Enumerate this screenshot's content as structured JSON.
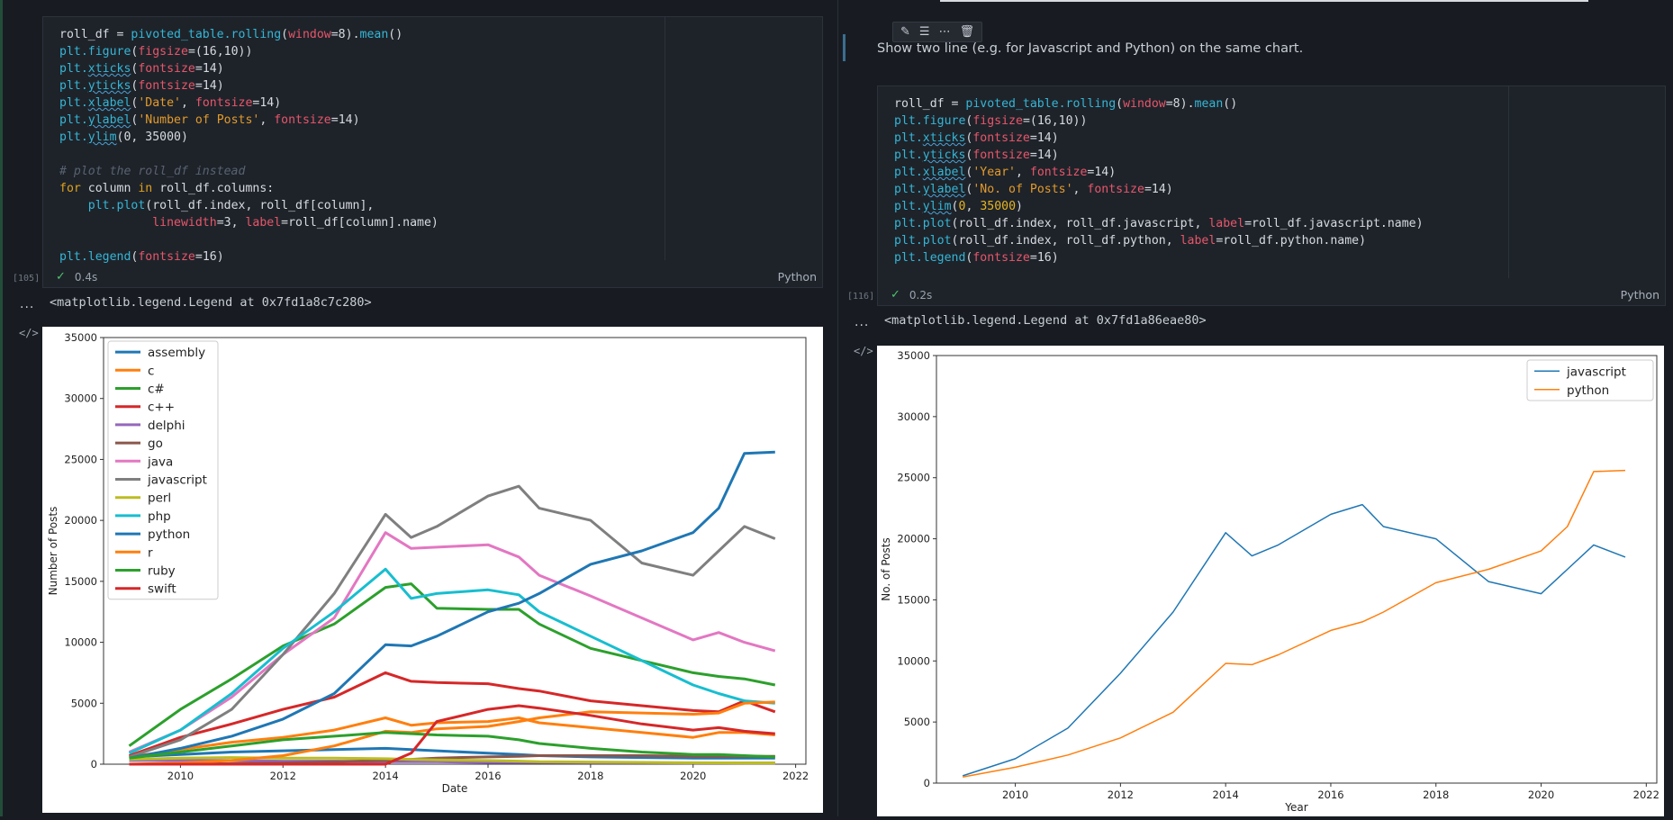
{
  "left": {
    "exec_count": "[105]",
    "code_lines": [
      [
        [
          "roll_df = ",
          ""
        ],
        [
          "pivoted_table.rolling",
          "fn"
        ],
        [
          "(",
          ""
        ],
        [
          "window",
          "arg"
        ],
        [
          "=8",
          ""
        ],
        [
          ").",
          ""
        ],
        [
          "mean",
          "fn"
        ],
        [
          "()",
          ""
        ]
      ],
      [
        [
          "plt.figure",
          "fn"
        ],
        [
          "(",
          ""
        ],
        [
          "figsize",
          "arg"
        ],
        [
          "=(16,10))",
          ""
        ]
      ],
      [
        [
          "plt.",
          "fn"
        ],
        [
          "xticks",
          "fn sq"
        ],
        [
          "(",
          ""
        ],
        [
          "fontsize",
          "arg"
        ],
        [
          "=14)",
          ""
        ]
      ],
      [
        [
          "plt.",
          "fn"
        ],
        [
          "yticks",
          "fn sq"
        ],
        [
          "(",
          ""
        ],
        [
          "fontsize",
          "arg"
        ],
        [
          "=14)",
          ""
        ]
      ],
      [
        [
          "plt.",
          "fn"
        ],
        [
          "xlabel",
          "fn sq"
        ],
        [
          "(",
          ""
        ],
        [
          "'Date'",
          "str"
        ],
        [
          ", ",
          ""
        ],
        [
          "fontsize",
          "arg"
        ],
        [
          "=14)",
          ""
        ]
      ],
      [
        [
          "plt.",
          "fn"
        ],
        [
          "ylabel",
          "fn sq"
        ],
        [
          "(",
          ""
        ],
        [
          "'Number of Posts'",
          "str"
        ],
        [
          ", ",
          ""
        ],
        [
          "fontsize",
          "arg"
        ],
        [
          "=14)",
          ""
        ]
      ],
      [
        [
          "plt.",
          "fn"
        ],
        [
          "ylim",
          "fn sq"
        ],
        [
          "(0, 35000)",
          ""
        ]
      ],
      [],
      [
        [
          "# plot the roll_df instead",
          "cm"
        ]
      ],
      [
        [
          "for",
          "kw"
        ],
        [
          " column ",
          ""
        ],
        [
          "in",
          "kw"
        ],
        [
          " roll_df.columns:",
          ""
        ]
      ],
      [
        [
          "    ",
          ""
        ],
        [
          "plt.plot",
          "fn"
        ],
        [
          "(roll_df.index, roll_df[column],",
          ""
        ]
      ],
      [
        [
          "             ",
          ""
        ],
        [
          "linewidth",
          "arg"
        ],
        [
          "=3, ",
          ""
        ],
        [
          "label",
          "arg"
        ],
        [
          "=roll_df[column].name)",
          ""
        ]
      ],
      [],
      [
        [
          "plt.legend",
          "fn"
        ],
        [
          "(",
          ""
        ],
        [
          "fontsize",
          "arg"
        ],
        [
          "=16)",
          ""
        ]
      ]
    ],
    "duration": "0.4s",
    "language": "Python",
    "output_text": "<matplotlib.legend.Legend at 0x7fd1a8c7c280>",
    "dots": "...",
    "code_icon": "</>"
  },
  "right": {
    "markdown": "Show two line (e.g. for Javascript and Python) on the same chart.",
    "toolbar_icons": [
      "pencil-icon",
      "list-icon",
      "more-icon",
      "trash-icon"
    ],
    "toolbar_glyphs": [
      "✎",
      "☰",
      "⋯",
      "🗑"
    ],
    "exec_count": "[116]",
    "code_lines": [
      [
        [
          "roll_df = ",
          ""
        ],
        [
          "pivoted_table.rolling",
          "fn"
        ],
        [
          "(",
          ""
        ],
        [
          "window",
          "arg"
        ],
        [
          "=8",
          ""
        ],
        [
          ").",
          ""
        ],
        [
          "mean",
          "fn"
        ],
        [
          "()",
          ""
        ]
      ],
      [
        [
          "plt.figure",
          "fn"
        ],
        [
          "(",
          ""
        ],
        [
          "figsize",
          "arg"
        ],
        [
          "=(16,10))",
          ""
        ]
      ],
      [
        [
          "plt.",
          "fn"
        ],
        [
          "xticks",
          "fn sq"
        ],
        [
          "(",
          ""
        ],
        [
          "fontsize",
          "arg"
        ],
        [
          "=14)",
          ""
        ]
      ],
      [
        [
          "plt.",
          "fn"
        ],
        [
          "yticks",
          "fn sq"
        ],
        [
          "(",
          ""
        ],
        [
          "fontsize",
          "arg"
        ],
        [
          "=14)",
          ""
        ]
      ],
      [
        [
          "plt.",
          "fn"
        ],
        [
          "xlabel",
          "fn sq"
        ],
        [
          "(",
          ""
        ],
        [
          "'Year'",
          "str"
        ],
        [
          ", ",
          ""
        ],
        [
          "fontsize",
          "arg"
        ],
        [
          "=14)",
          ""
        ]
      ],
      [
        [
          "plt.",
          "fn"
        ],
        [
          "ylabel",
          "fn sq"
        ],
        [
          "(",
          ""
        ],
        [
          "'No. of Posts'",
          "str"
        ],
        [
          ", ",
          ""
        ],
        [
          "fontsize",
          "arg"
        ],
        [
          "=14)",
          ""
        ]
      ],
      [
        [
          "plt.",
          "fn"
        ],
        [
          "ylim",
          "fn sq"
        ],
        [
          "(",
          ""
        ],
        [
          "0",
          "num"
        ],
        [
          ", ",
          ""
        ],
        [
          "35000",
          "num"
        ],
        [
          ")",
          ""
        ]
      ],
      [
        [
          "plt.plot",
          "fn"
        ],
        [
          "(roll_df.index, roll_df.javascript, ",
          ""
        ],
        [
          "label",
          "arg"
        ],
        [
          "=roll_df.javascript.name)",
          ""
        ]
      ],
      [
        [
          "plt.plot",
          "fn"
        ],
        [
          "(roll_df.index, roll_df.python, ",
          ""
        ],
        [
          "label",
          "arg"
        ],
        [
          "=roll_df.python.name)",
          ""
        ]
      ],
      [
        [
          "plt.legend",
          "fn"
        ],
        [
          "(",
          ""
        ],
        [
          "fontsize",
          "arg"
        ],
        [
          "=16)",
          ""
        ]
      ]
    ],
    "duration": "0.2s",
    "language": "Python",
    "output_text": "<matplotlib.legend.Legend at 0x7fd1a86eae80>",
    "dots": "...",
    "code_icon": "</>"
  },
  "chart_data": [
    {
      "type": "line",
      "title": "",
      "xlabel": "Date",
      "ylabel": "Number of Posts",
      "xlim": [
        2008.5,
        2022.2
      ],
      "ylim": [
        0,
        35000
      ],
      "xticks": [
        2010,
        2012,
        2014,
        2016,
        2018,
        2020,
        2022
      ],
      "yticks": [
        0,
        5000,
        10000,
        15000,
        20000,
        25000,
        30000,
        35000
      ],
      "legend_position": "top-left",
      "linewidth": 3,
      "x": [
        2009,
        2010,
        2011,
        2012,
        2013,
        2014,
        2014.5,
        2015,
        2016,
        2016.6,
        2017,
        2018,
        2019,
        2020,
        2020.5,
        2021,
        2021.6
      ],
      "series": [
        {
          "name": "assembly",
          "color": "#1f77b4",
          "values": [
            600,
            800,
            1000,
            1100,
            1200,
            1300,
            1200,
            1100,
            900,
            800,
            700,
            600,
            550,
            500,
            500,
            500,
            500
          ]
        },
        {
          "name": "c",
          "color": "#ff7f0e",
          "values": [
            600,
            1200,
            1800,
            2200,
            2800,
            3800,
            3200,
            3400,
            3500,
            3800,
            3400,
            3000,
            2600,
            2200,
            2600,
            2600,
            2400
          ]
        },
        {
          "name": "c#",
          "color": "#2ca02c",
          "values": [
            1500,
            4500,
            7000,
            9700,
            11500,
            14500,
            14800,
            12800,
            12700,
            12700,
            11500,
            9500,
            8500,
            7500,
            7200,
            7000,
            6500
          ]
        },
        {
          "name": "c++",
          "color": "#d62728",
          "values": [
            700,
            2200,
            3300,
            4500,
            5500,
            7500,
            6800,
            6700,
            6600,
            6200,
            6000,
            5200,
            4800,
            4400,
            4300,
            5200,
            4300
          ]
        },
        {
          "name": "delphi",
          "color": "#9467bd",
          "values": [
            300,
            300,
            300,
            250,
            250,
            200,
            200,
            200,
            150,
            150,
            150,
            120,
            120,
            100,
            100,
            100,
            100
          ]
        },
        {
          "name": "go",
          "color": "#8c564b",
          "values": [
            0,
            0,
            50,
            100,
            200,
            300,
            400,
            500,
            600,
            650,
            700,
            700,
            700,
            650,
            650,
            650,
            650
          ]
        },
        {
          "name": "java",
          "color": "#e377c2",
          "values": [
            1000,
            2800,
            5500,
            9000,
            12000,
            19000,
            17700,
            17800,
            18000,
            17000,
            15500,
            13800,
            12000,
            10200,
            10800,
            10000,
            9300
          ]
        },
        {
          "name": "javascript",
          "color": "#7f7f7f",
          "values": [
            600,
            2000,
            4500,
            9000,
            14000,
            20500,
            18600,
            19500,
            22000,
            22800,
            21000,
            20000,
            16500,
            15500,
            17500,
            19500,
            18500
          ]
        },
        {
          "name": "perl",
          "color": "#bcbd22",
          "values": [
            400,
            500,
            550,
            500,
            500,
            450,
            400,
            350,
            300,
            250,
            200,
            180,
            150,
            120,
            110,
            100,
            100
          ]
        },
        {
          "name": "php",
          "color": "#17becf",
          "values": [
            900,
            2800,
            5800,
            9500,
            12500,
            16000,
            13600,
            14000,
            14300,
            13900,
            12500,
            10500,
            8500,
            6500,
            5800,
            5200,
            5000
          ]
        },
        {
          "name": "python",
          "color": "#1f77b4",
          "values": [
            500,
            1300,
            2300,
            3700,
            5800,
            9800,
            9700,
            10500,
            12500,
            13200,
            14000,
            16400,
            17500,
            19000,
            21000,
            25500,
            25600
          ]
        },
        {
          "name": "r",
          "color": "#ff7f0e",
          "values": [
            0,
            100,
            300,
            700,
            1500,
            2700,
            2600,
            2900,
            3100,
            3500,
            3800,
            4300,
            4200,
            4100,
            4200,
            5000,
            5100
          ]
        },
        {
          "name": "ruby",
          "color": "#2ca02c",
          "values": [
            500,
            1000,
            1500,
            2000,
            2300,
            2600,
            2500,
            2400,
            2300,
            2000,
            1700,
            1300,
            1000,
            800,
            800,
            700,
            600
          ]
        },
        {
          "name": "swift",
          "color": "#d62728",
          "values": [
            0,
            0,
            0,
            0,
            0,
            0,
            900,
            3500,
            4500,
            4800,
            4600,
            4000,
            3300,
            2800,
            3000,
            2700,
            2500
          ]
        }
      ]
    },
    {
      "type": "line",
      "title": "",
      "xlabel": "Year",
      "ylabel": "No. of Posts",
      "xlim": [
        2008.5,
        2022.2
      ],
      "ylim": [
        0,
        35000
      ],
      "xticks": [
        2010,
        2012,
        2014,
        2016,
        2018,
        2020,
        2022
      ],
      "yticks": [
        0,
        5000,
        10000,
        15000,
        20000,
        25000,
        30000,
        35000
      ],
      "legend_position": "top-right",
      "linewidth": 1.5,
      "x": [
        2009,
        2010,
        2011,
        2012,
        2013,
        2014,
        2014.5,
        2015,
        2016,
        2016.6,
        2017,
        2018,
        2019,
        2020,
        2020.5,
        2021,
        2021.6
      ],
      "series": [
        {
          "name": "javascript",
          "color": "#1f77b4",
          "values": [
            600,
            2000,
            4500,
            9000,
            14000,
            20500,
            18600,
            19500,
            22000,
            22800,
            21000,
            20000,
            16500,
            15500,
            17500,
            19500,
            18500
          ]
        },
        {
          "name": "python",
          "color": "#ff7f0e",
          "values": [
            500,
            1300,
            2300,
            3700,
            5800,
            9800,
            9700,
            10500,
            12500,
            13200,
            14000,
            16400,
            17500,
            19000,
            21000,
            25500,
            25600
          ]
        }
      ]
    }
  ]
}
